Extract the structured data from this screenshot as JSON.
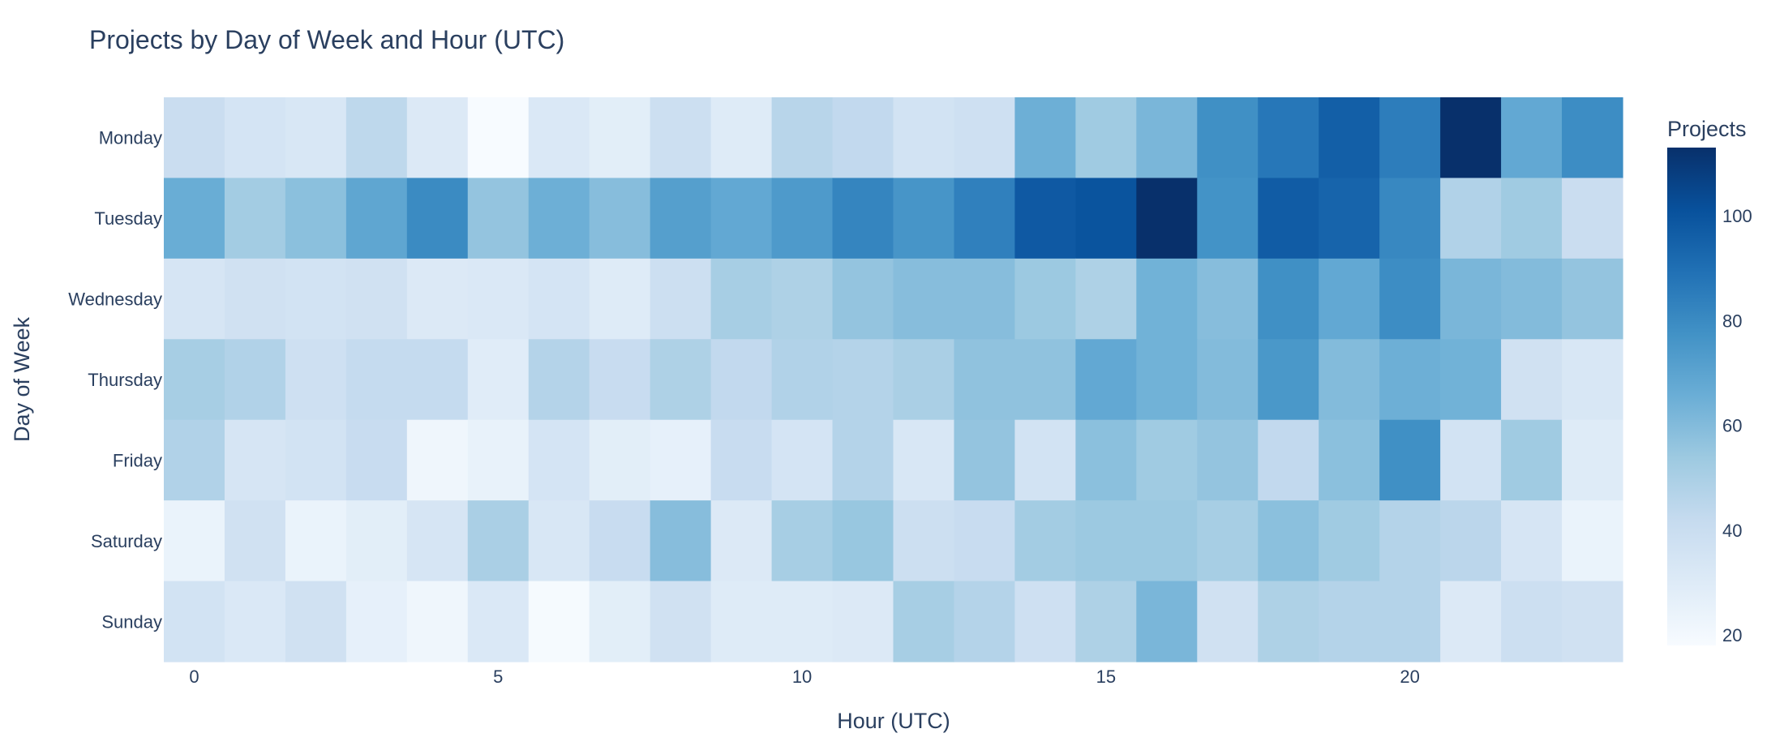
{
  "chart_data": {
    "type": "heatmap",
    "title": "Projects by Day of Week and Hour (UTC)",
    "xlabel": "Hour (UTC)",
    "ylabel": "Day of Week",
    "x": [
      0,
      1,
      2,
      3,
      4,
      5,
      6,
      7,
      8,
      9,
      10,
      11,
      12,
      13,
      14,
      15,
      16,
      17,
      18,
      19,
      20,
      21,
      22,
      23
    ],
    "x_ticks": [
      0,
      5,
      10,
      15,
      20
    ],
    "y": [
      "Monday",
      "Tuesday",
      "Wednesday",
      "Thursday",
      "Friday",
      "Saturday",
      "Sunday"
    ],
    "z": [
      [
        40,
        35,
        33,
        44,
        31,
        18,
        32,
        28,
        39,
        30,
        46,
        43,
        36,
        38,
        65,
        53,
        62,
        78,
        87,
        96,
        85,
        113,
        68,
        79
      ],
      [
        66,
        52,
        58,
        69,
        80,
        56,
        65,
        59,
        72,
        68,
        74,
        82,
        76,
        84,
        98,
        100,
        113,
        77,
        97,
        94,
        81,
        48,
        53,
        40
      ],
      [
        34,
        37,
        36,
        37,
        31,
        32,
        35,
        30,
        39,
        51,
        49,
        56,
        59,
        59,
        54,
        49,
        64,
        59,
        78,
        68,
        79,
        62,
        60,
        56
      ],
      [
        51,
        48,
        38,
        42,
        42,
        29,
        47,
        41,
        49,
        43,
        48,
        47,
        50,
        57,
        57,
        68,
        64,
        60,
        75,
        60,
        65,
        64,
        37,
        33
      ],
      [
        48,
        34,
        36,
        41,
        22,
        25,
        35,
        28,
        26,
        41,
        35,
        47,
        33,
        56,
        36,
        58,
        53,
        56,
        43,
        58,
        78,
        36,
        53,
        30
      ],
      [
        24,
        37,
        24,
        28,
        34,
        50,
        33,
        41,
        59,
        31,
        51,
        55,
        39,
        41,
        52,
        54,
        54,
        51,
        58,
        53,
        47,
        45,
        34,
        24
      ],
      [
        36,
        32,
        37,
        26,
        22,
        32,
        19,
        28,
        37,
        30,
        30,
        31,
        51,
        47,
        38,
        49,
        62,
        37,
        49,
        47,
        47,
        31,
        39,
        37
      ]
    ],
    "zmin": 18,
    "zmax": 113,
    "colorscale": [
      "#f7fbff",
      "#deebf7",
      "#c6dbef",
      "#9ecae1",
      "#6baed6",
      "#4292c6",
      "#2171b5",
      "#08519c",
      "#08306b"
    ],
    "colorbar": {
      "title": "Projects",
      "ticks": [
        20,
        40,
        60,
        80,
        100
      ]
    }
  }
}
